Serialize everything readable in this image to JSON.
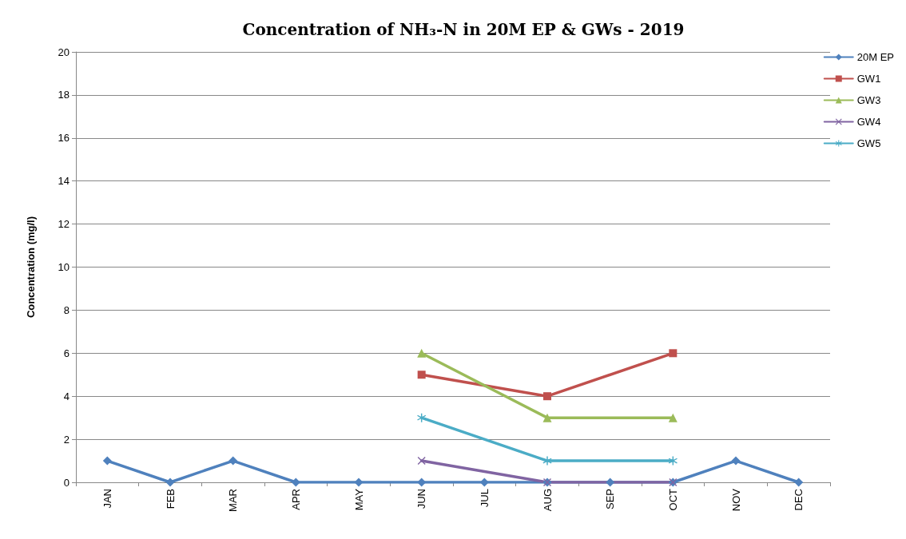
{
  "chart_data": {
    "type": "line",
    "title": "Concentration of NH₃-N in 20M EP & GWs - 2019",
    "ylabel": "Concentration (mg/l)",
    "categories": [
      "JAN",
      "FEB",
      "MAR",
      "APR",
      "MAY",
      "JUN",
      "JUL",
      "AUG",
      "SEP",
      "OCT",
      "NOV",
      "DEC"
    ],
    "series": [
      {
        "name": "20M EP",
        "color": "#4f81bd",
        "marker": "diamond",
        "values": [
          1,
          0,
          1,
          0,
          0,
          0,
          0,
          0,
          0,
          0,
          1,
          0
        ]
      },
      {
        "name": "GW1",
        "color": "#c0504d",
        "marker": "square",
        "values": [
          null,
          null,
          null,
          null,
          null,
          5,
          null,
          4,
          null,
          6,
          null,
          null
        ]
      },
      {
        "name": "GW3",
        "color": "#9bbb59",
        "marker": "triangle",
        "values": [
          null,
          null,
          null,
          null,
          null,
          6,
          null,
          3,
          null,
          3,
          null,
          null
        ]
      },
      {
        "name": "GW4",
        "color": "#8064a2",
        "marker": "cross",
        "values": [
          null,
          null,
          null,
          null,
          null,
          1,
          null,
          0,
          null,
          0,
          null,
          null
        ]
      },
      {
        "name": "GW5",
        "color": "#4bacc6",
        "marker": "star",
        "values": [
          null,
          null,
          null,
          null,
          null,
          3,
          null,
          1,
          null,
          1,
          null,
          null
        ]
      }
    ],
    "ylim": [
      0,
      20
    ],
    "yticks": [
      0,
      2,
      4,
      6,
      8,
      10,
      12,
      14,
      16,
      18,
      20
    ],
    "grid": "y",
    "legend": "top right",
    "line_style": "solid"
  }
}
